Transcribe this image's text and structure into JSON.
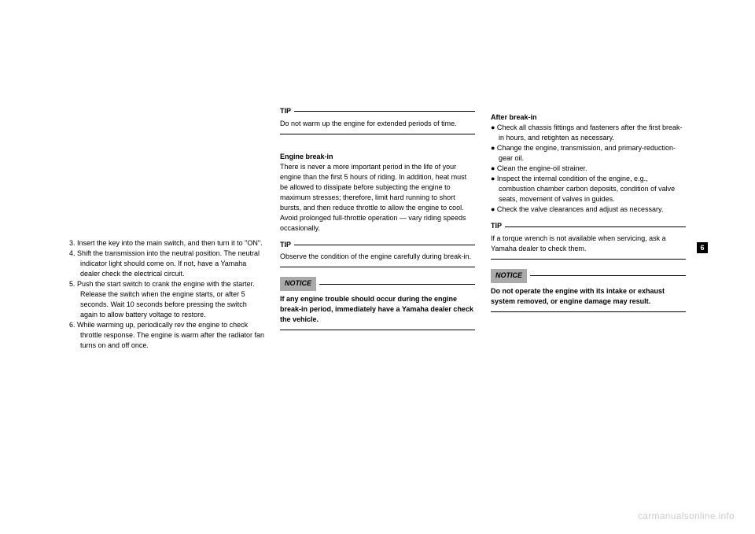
{
  "sideTab": "6",
  "watermark": "carmanualsonline.info",
  "colLeft": {
    "step3": "3.  Insert the key into the main switch, and then turn it to \"ON\".",
    "step4": "4.  Shift the transmission into the neutral position. The neutral indicator light should come on. If not, have a Yamaha dealer check the electrical circuit.",
    "step5": "5.  Push the start switch to crank the engine with the starter. Release the switch when the engine starts, or after 5 seconds. Wait 10 seconds before pressing the switch again to allow battery voltage to restore.",
    "step6": "6.  While warming up, periodically rev the engine to check throttle response. The engine is warm after the radiator fan turns on and off once."
  },
  "colMiddle": {
    "tip1Label": "TIP",
    "tip1Text": "Do not warm up the engine for extended periods of time.",
    "breakInTitle": "Engine break-in",
    "breakInBody": "There is never a more important period in the life of your engine than the first 5 hours of riding. In addition, heat must be allowed to dissipate before subjecting the engine to maximum stresses; therefore, limit hard running to short bursts, and then reduce throttle to allow the engine to cool. Avoid prolonged full-throttle operation — vary riding speeds occasionally.",
    "tip2Label": "TIP",
    "tip2Text": "Observe the condition of the engine carefully during break-in.",
    "noticeLabel": "NOTICE",
    "noticeText": "If any engine trouble should occur during the engine break-in period, immediately have a Yamaha dealer check the vehicle."
  },
  "colRight": {
    "afterTitle": "After break-in",
    "bullet1": "●  Check all chassis fittings and fasteners after the first break-in hours, and retighten as necessary.",
    "bullet2": "●  Change the engine, transmission, and primary-reduction-gear oil.",
    "bullet3": "●  Clean the engine-oil strainer.",
    "bullet4": "●  Inspect the internal condition of the engine, e.g., combustion chamber carbon deposits, condition of valve seats, movement of valves in guides.",
    "bullet5": "●  Check the valve clearances and adjust as necessary.",
    "tipLabel": "TIP",
    "tipText": "If a torque wrench is not available when servicing, ask a Yamaha dealer to check them.",
    "noticeLabel": "NOTICE",
    "noticeText": "Do not operate the engine with its intake or exhaust system removed, or engine damage may result."
  }
}
